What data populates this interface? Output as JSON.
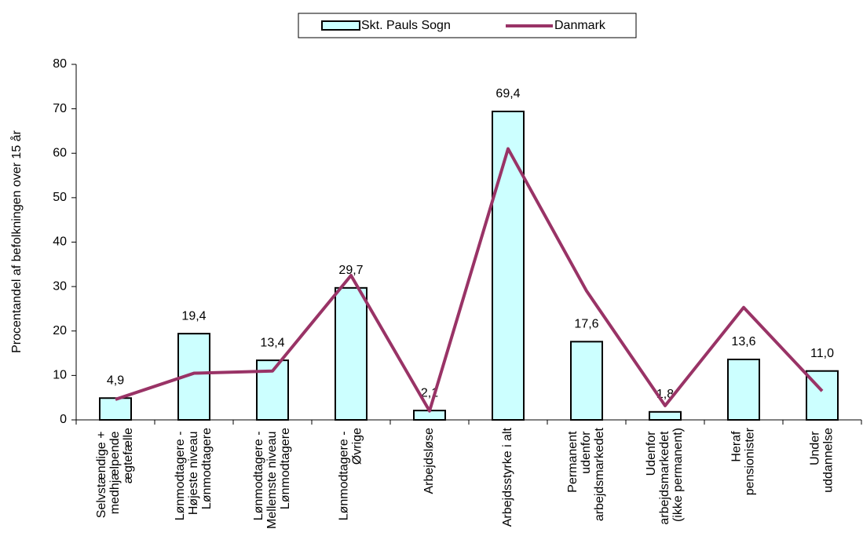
{
  "chart_data": {
    "type": "bar",
    "ylabel": "Procentandel af befolkningen over 15 år",
    "categories": [
      "Selvstændige +\nmedhjælpende\nægtefælle",
      "Lønmodtagere -\nHøjeste niveau\nLønmodtagere",
      "Lønmodtagere -\nMellemste niveau\nLønmodtagere",
      "Lønmodtagere -\nØvrige",
      "Arbejdsløse",
      "Arbejdsstyrke i alt",
      "Permanent\nudenfor\narbejdsmarkedet",
      "Udenfor\narbejdsmarkedet\n(ikke permanent)",
      "Heraf\npensionister",
      "Under\nuddannelse"
    ],
    "series": [
      {
        "name": "Skt. Pauls Sogn",
        "type": "bar",
        "color": "#ccffff",
        "values": [
          4.9,
          19.4,
          13.4,
          29.7,
          2.1,
          69.4,
          17.6,
          1.8,
          13.6,
          11.0
        ],
        "value_labels": [
          "4,9",
          "19,4",
          "13,4",
          "29,7",
          "2,1",
          "69,4",
          "17,6",
          "1,8",
          "13,6",
          "11,0"
        ]
      },
      {
        "name": "Danmark",
        "type": "line",
        "color": "#993366",
        "values": [
          4.6,
          10.5,
          11.0,
          32.5,
          2.0,
          61.0,
          29.0,
          3.2,
          25.3,
          6.5
        ]
      }
    ],
    "ylim": [
      0,
      80
    ],
    "yticks": [
      0,
      10,
      20,
      30,
      40,
      50,
      60,
      70,
      80
    ],
    "legend": "top"
  }
}
